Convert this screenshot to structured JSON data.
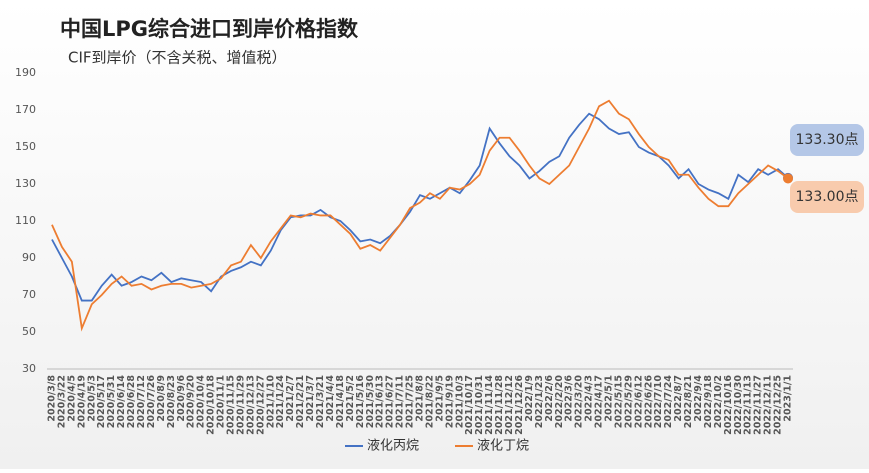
{
  "chart_data": {
    "type": "line",
    "title": "中国LPG综合进口到岸价格指数",
    "subtitle": "CIF到岸价（不含关税、增值税）",
    "categories": [
      "2020/3/8",
      "2020/3/22",
      "2020/4/5",
      "2020/4/19",
      "2020/5/3",
      "2020/5/17",
      "2020/5/31",
      "2020/6/14",
      "2020/6/28",
      "2020/7/12",
      "2020/7/26",
      "2020/8/9",
      "2020/8/23",
      "2020/9/6",
      "2020/9/20",
      "2020/10/4",
      "2020/10/18",
      "2020/11/1",
      "2020/11/15",
      "2020/11/29",
      "2020/12/13",
      "2020/12/27",
      "2021/1/10",
      "2021/1/24",
      "2021/2/7",
      "2021/2/21",
      "2021/3/7",
      "2021/3/21",
      "2021/4/4",
      "2021/4/18",
      "2021/5/2",
      "2021/5/16",
      "2021/5/30",
      "2021/6/13",
      "2021/6/27",
      "2021/7/11",
      "2021/7/25",
      "2021/8/8",
      "2021/8/22",
      "2021/9/5",
      "2021/9/19",
      "2021/10/3",
      "2021/10/17",
      "2021/10/31",
      "2021/11/14",
      "2021/11/28",
      "2021/12/12",
      "2021/12/26",
      "2022/1/9",
      "2022/1/23",
      "2022/2/6",
      "2022/2/20",
      "2022/3/6",
      "2022/3/20",
      "2022/4/3",
      "2022/4/17",
      "2022/5/1",
      "2022/5/15",
      "2022/5/29",
      "2022/6/12",
      "2022/6/26",
      "2022/7/10",
      "2022/7/24",
      "2022/8/7",
      "2022/8/21",
      "2022/9/4",
      "2022/9/18",
      "2022/10/2",
      "2022/10/16",
      "2022/10/30",
      "2022/11/13",
      "2022/11/27",
      "2022/12/11",
      "2022/12/25",
      "2023/1/1"
    ],
    "series": [
      {
        "name": "液化丙烷",
        "color": "#4472c4",
        "label_bg": "#b4c7e7",
        "values": [
          100,
          90,
          80,
          67,
          67,
          75,
          81,
          75,
          77,
          80,
          78,
          82,
          77,
          79,
          78,
          77,
          72,
          80,
          83,
          85,
          88,
          86,
          94,
          105,
          112,
          113,
          113,
          116,
          112,
          110,
          105,
          99,
          100,
          98,
          102,
          108,
          115,
          124,
          122,
          125,
          128,
          125,
          132,
          140,
          160,
          152,
          145,
          140,
          133,
          137,
          142,
          145,
          155,
          162,
          168,
          165,
          160,
          157,
          158,
          150,
          147,
          145,
          140,
          133,
          138,
          130,
          127,
          125,
          122,
          135,
          131,
          138,
          135,
          138,
          133.3
        ],
        "value_labels": [
          null,
          null,
          null,
          null,
          null,
          null,
          null,
          null,
          null,
          null,
          null,
          null,
          null,
          null,
          null,
          null,
          null,
          null,
          null,
          null,
          null,
          null,
          null,
          null,
          null,
          null,
          null,
          null,
          null,
          null,
          null,
          null,
          null,
          null,
          null,
          null,
          null,
          null,
          null,
          null,
          null,
          null,
          null,
          null,
          null,
          null,
          null,
          null,
          null,
          null,
          null,
          null,
          null,
          null,
          null,
          null,
          null,
          null,
          null,
          null,
          null,
          null,
          null,
          null,
          null,
          null,
          null,
          null,
          null,
          null,
          null,
          null,
          null,
          null,
          "133.30点"
        ]
      },
      {
        "name": "液化丁烷",
        "color": "#ed7d31",
        "label_bg": "#f8cbad",
        "values": [
          108,
          96,
          88,
          52,
          65,
          70,
          76,
          80,
          75,
          76,
          73,
          75,
          76,
          76,
          74,
          75,
          76,
          79,
          86,
          88,
          97,
          90,
          99,
          106,
          113,
          112,
          114,
          113,
          113,
          108,
          103,
          95,
          97,
          94,
          101,
          108,
          117,
          120,
          125,
          122,
          128,
          127,
          130,
          135,
          148,
          155,
          155,
          148,
          140,
          133,
          130,
          135,
          140,
          150,
          160,
          172,
          175,
          168,
          165,
          157,
          150,
          145,
          143,
          135,
          135,
          128,
          122,
          118,
          118,
          125,
          130,
          135,
          140,
          137,
          133
        ],
        "value_labels": [
          null,
          null,
          null,
          null,
          null,
          null,
          null,
          null,
          null,
          null,
          null,
          null,
          null,
          null,
          null,
          null,
          null,
          null,
          null,
          null,
          null,
          null,
          null,
          null,
          null,
          null,
          null,
          null,
          null,
          null,
          null,
          null,
          null,
          null,
          null,
          null,
          null,
          null,
          null,
          null,
          null,
          null,
          null,
          null,
          null,
          null,
          null,
          null,
          null,
          null,
          null,
          null,
          null,
          null,
          null,
          null,
          null,
          null,
          null,
          null,
          null,
          null,
          null,
          null,
          null,
          null,
          null,
          null,
          null,
          null,
          null,
          null,
          null,
          null,
          "133.00点"
        ]
      }
    ],
    "ylim": [
      30,
      190
    ],
    "yticks": [
      30,
      50,
      70,
      90,
      110,
      130,
      150,
      170,
      190
    ],
    "grid": false,
    "legend": "bottom"
  }
}
